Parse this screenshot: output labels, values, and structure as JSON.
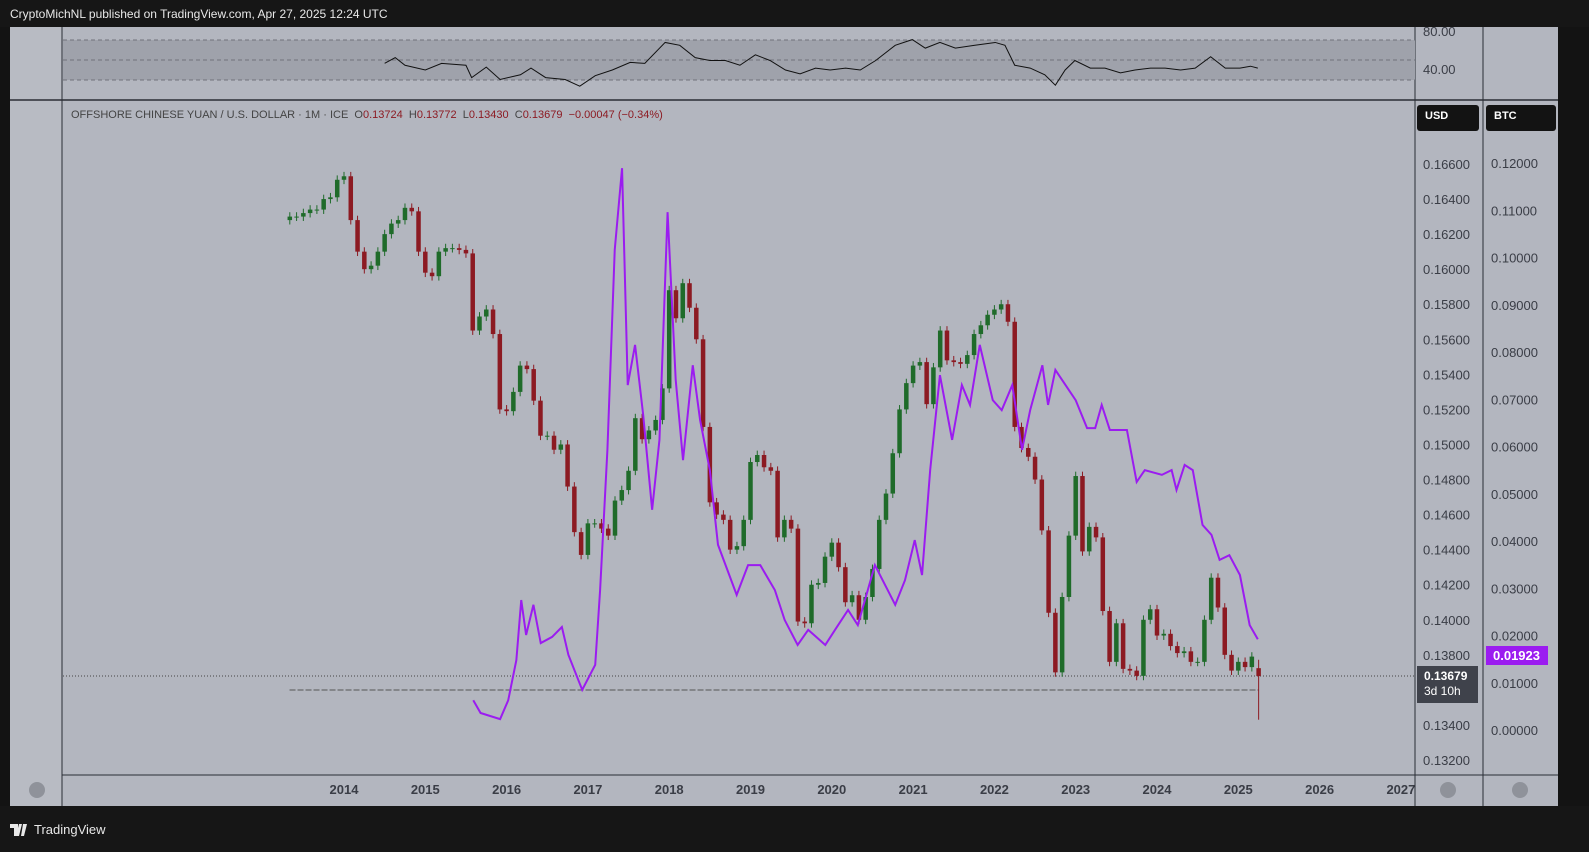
{
  "header": {
    "published": "CryptoMichNL published on TradingView.com, Apr 27, 2025 12:24 UTC"
  },
  "footer": {
    "logo_text": "TradingView"
  },
  "legend": {
    "symbol": "OFFSHORE CHINESE YUAN / U.S. DOLLAR · 1M · ICE",
    "o_label": "O",
    "o": "0.13724",
    "h_label": "H",
    "h": "0.13772",
    "l_label": "L",
    "l": "0.13430",
    "c_label": "C",
    "c": "0.13679",
    "change": "−0.00047 (−0.34%)"
  },
  "scales": {
    "left_label": "USD",
    "right_label": "BTC"
  },
  "price_tag": {
    "value": "0.13679",
    "countdown": "3d 10h"
  },
  "btc_tag": {
    "value": "0.01923"
  },
  "colors": {
    "up": "#1f6b2a",
    "down": "#8c1a22",
    "btc_line": "#9b1cf0",
    "background": "#b3b6bf"
  },
  "chart_data": [
    {
      "type": "candlestick",
      "title": "OFFSHORE CHINESE YUAN / U.S. DOLLAR · 1M · ICE",
      "start": "2013-05",
      "interval": "1M",
      "closes": [
        0.163,
        0.163,
        0.1632,
        0.1634,
        0.1634,
        0.164,
        0.1641,
        0.1651,
        0.1653,
        0.1628,
        0.161,
        0.16,
        0.1602,
        0.161,
        0.162,
        0.1626,
        0.1628,
        0.1635,
        0.1633,
        0.161,
        0.1598,
        0.1596,
        0.161,
        0.1612,
        0.1612,
        0.1611,
        0.1609,
        0.1565,
        0.1573,
        0.1577,
        0.1563,
        0.152,
        0.1519,
        0.153,
        0.1545,
        0.1543,
        0.1525,
        0.1505,
        0.1505,
        0.1497,
        0.15,
        0.1476,
        0.145,
        0.1437,
        0.1455,
        0.1455,
        0.1452,
        0.1448,
        0.1468,
        0.1474,
        0.1485,
        0.1515,
        0.1503,
        0.1508,
        0.1514,
        0.1532,
        0.1588,
        0.1572,
        0.1592,
        0.1578,
        0.156,
        0.151,
        0.1467,
        0.146,
        0.1457,
        0.144,
        0.1442,
        0.1457,
        0.149,
        0.1494,
        0.1487,
        0.1485,
        0.1447,
        0.1457,
        0.1452,
        0.1399,
        0.1398,
        0.142,
        0.1421,
        0.1436,
        0.1444,
        0.143,
        0.141,
        0.1414,
        0.14,
        0.1413,
        0.1429,
        0.1457,
        0.1472,
        0.1495,
        0.152,
        0.1535,
        0.1545,
        0.1547,
        0.1523,
        0.1544,
        0.1565,
        0.1548,
        0.1547,
        0.1546,
        0.1551,
        0.1563,
        0.1568,
        0.1574,
        0.1577,
        0.158,
        0.157,
        0.151,
        0.1498,
        0.1493,
        0.148,
        0.1451,
        0.1404,
        0.137,
        0.1413,
        0.1448,
        0.1482,
        0.1439,
        0.1453,
        0.1447,
        0.1405,
        0.1376,
        0.1398,
        0.1372,
        0.1371,
        0.1368,
        0.14,
        0.1406,
        0.1391,
        0.1392,
        0.1385,
        0.1381,
        0.1382,
        0.1376,
        0.1376,
        0.14,
        0.1424,
        0.1407,
        0.138,
        0.1371,
        0.1376,
        0.1373,
        0.1379,
        0.1368
      ],
      "last": {
        "open": 0.13724,
        "high": 0.13772,
        "low": 0.1343,
        "close": 0.13679
      },
      "y_ticks": [
        "0.16600",
        "0.16400",
        "0.16200",
        "0.16000",
        "0.15800",
        "0.15600",
        "0.15400",
        "0.15200",
        "0.15000",
        "0.14800",
        "0.14600",
        "0.14400",
        "0.14200",
        "0.14000",
        "0.13800",
        "0.13400",
        "0.13200"
      ],
      "ylim": [
        0.132,
        0.166
      ],
      "x_ticks": [
        "2014",
        "2015",
        "2016",
        "2017",
        "2018",
        "2019",
        "2020",
        "2021",
        "2022",
        "2023",
        "2024",
        "2025",
        "2026",
        "2027"
      ]
    },
    {
      "type": "line",
      "axis": "right",
      "color": "#9b1cf0",
      "y_ticks": [
        "0.12000",
        "0.11000",
        "0.10000",
        "0.09000",
        "0.08000",
        "0.07000",
        "0.06000",
        "0.05000",
        "0.04000",
        "0.03000",
        "0.02000",
        "0.01000",
        "0.00000"
      ],
      "ylim": [
        0,
        0.12
      ],
      "points": [
        [
          2015.59,
          0.0063
        ],
        [
          2015.68,
          0.0036
        ],
        [
          2015.92,
          0.0023
        ],
        [
          2016.02,
          0.0063
        ],
        [
          2016.12,
          0.0148
        ],
        [
          2016.18,
          0.0275
        ],
        [
          2016.24,
          0.0201
        ],
        [
          2016.33,
          0.0265
        ],
        [
          2016.42,
          0.0184
        ],
        [
          2016.56,
          0.0197
        ],
        [
          2016.68,
          0.0218
        ],
        [
          2016.76,
          0.0159
        ],
        [
          2016.93,
          0.0085
        ],
        [
          2017.09,
          0.0138
        ],
        [
          2017.15,
          0.0296
        ],
        [
          2017.24,
          0.0593
        ],
        [
          2017.33,
          0.1016
        ],
        [
          2017.42,
          0.1189
        ],
        [
          2017.49,
          0.073
        ],
        [
          2017.58,
          0.0815
        ],
        [
          2017.68,
          0.0667
        ],
        [
          2017.79,
          0.0466
        ],
        [
          2017.88,
          0.0614
        ],
        [
          2017.98,
          0.1096
        ],
        [
          2018.08,
          0.0741
        ],
        [
          2018.17,
          0.0571
        ],
        [
          2018.29,
          0.0772
        ],
        [
          2018.38,
          0.0656
        ],
        [
          2018.5,
          0.055
        ],
        [
          2018.6,
          0.0392
        ],
        [
          2018.83,
          0.0286
        ],
        [
          2018.97,
          0.0349
        ],
        [
          2019.12,
          0.0349
        ],
        [
          2019.3,
          0.0296
        ],
        [
          2019.42,
          0.0233
        ],
        [
          2019.58,
          0.018
        ],
        [
          2019.71,
          0.0212
        ],
        [
          2019.92,
          0.018
        ],
        [
          2020.04,
          0.0212
        ],
        [
          2020.2,
          0.0254
        ],
        [
          2020.32,
          0.0222
        ],
        [
          2020.53,
          0.0349
        ],
        [
          2020.78,
          0.0265
        ],
        [
          2020.9,
          0.0317
        ],
        [
          2021.02,
          0.0402
        ],
        [
          2021.11,
          0.0328
        ],
        [
          2021.21,
          0.055
        ],
        [
          2021.33,
          0.0751
        ],
        [
          2021.48,
          0.0614
        ],
        [
          2021.6,
          0.073
        ],
        [
          2021.7,
          0.0688
        ],
        [
          2021.82,
          0.0815
        ],
        [
          2021.98,
          0.0698
        ],
        [
          2022.09,
          0.0677
        ],
        [
          2022.22,
          0.073
        ],
        [
          2022.34,
          0.0593
        ],
        [
          2022.44,
          0.0677
        ],
        [
          2022.59,
          0.0772
        ],
        [
          2022.66,
          0.0688
        ],
        [
          2022.75,
          0.0762
        ],
        [
          2023.0,
          0.0698
        ],
        [
          2023.14,
          0.0639
        ],
        [
          2023.24,
          0.0639
        ],
        [
          2023.32,
          0.0688
        ],
        [
          2023.42,
          0.0635
        ],
        [
          2023.63,
          0.0635
        ],
        [
          2023.75,
          0.0525
        ],
        [
          2023.85,
          0.055
        ],
        [
          2024.06,
          0.054
        ],
        [
          2024.18,
          0.055
        ],
        [
          2024.24,
          0.0508
        ],
        [
          2024.34,
          0.0561
        ],
        [
          2024.44,
          0.055
        ],
        [
          2024.56,
          0.0434
        ],
        [
          2024.67,
          0.0413
        ],
        [
          2024.77,
          0.036
        ],
        [
          2024.89,
          0.037
        ],
        [
          2025.02,
          0.0328
        ],
        [
          2025.14,
          0.0222
        ],
        [
          2025.24,
          0.0192
        ]
      ]
    },
    {
      "type": "line",
      "pane": "rsi",
      "y_ticks": [
        "80.00",
        "40.00"
      ],
      "bands": [
        40,
        60,
        80
      ],
      "points": [
        [
          2014.5,
          47
        ],
        [
          2014.63,
          53
        ],
        [
          2014.75,
          45
        ],
        [
          2015.0,
          40
        ],
        [
          2015.2,
          47
        ],
        [
          2015.5,
          45
        ],
        [
          2015.57,
          32
        ],
        [
          2015.75,
          43
        ],
        [
          2015.92,
          30
        ],
        [
          2016.17,
          35
        ],
        [
          2016.3,
          42
        ],
        [
          2016.48,
          32
        ],
        [
          2016.72,
          30
        ],
        [
          2016.9,
          23
        ],
        [
          2017.09,
          34
        ],
        [
          2017.3,
          40
        ],
        [
          2017.52,
          48
        ],
        [
          2017.7,
          47
        ],
        [
          2017.95,
          69
        ],
        [
          2018.13,
          66
        ],
        [
          2018.32,
          53
        ],
        [
          2018.5,
          50
        ],
        [
          2018.69,
          50
        ],
        [
          2018.87,
          45
        ],
        [
          2019.06,
          56
        ],
        [
          2019.24,
          50
        ],
        [
          2019.43,
          40
        ],
        [
          2019.61,
          36
        ],
        [
          2019.8,
          42
        ],
        [
          2019.98,
          40
        ],
        [
          2020.17,
          42
        ],
        [
          2020.35,
          40
        ],
        [
          2020.54,
          50
        ],
        [
          2020.78,
          66
        ],
        [
          2020.99,
          72
        ],
        [
          2021.15,
          63
        ],
        [
          2021.33,
          69
        ],
        [
          2021.52,
          63
        ],
        [
          2021.76,
          66
        ],
        [
          2022.01,
          69
        ],
        [
          2022.13,
          66
        ],
        [
          2022.25,
          45
        ],
        [
          2022.44,
          42
        ],
        [
          2022.62,
          35
        ],
        [
          2022.75,
          24
        ],
        [
          2022.87,
          40
        ],
        [
          2022.99,
          50
        ],
        [
          2023.18,
          42
        ],
        [
          2023.36,
          42
        ],
        [
          2023.55,
          37
        ],
        [
          2023.73,
          40
        ],
        [
          2023.92,
          42
        ],
        [
          2024.1,
          42
        ],
        [
          2024.29,
          40
        ],
        [
          2024.47,
          42
        ],
        [
          2024.66,
          54
        ],
        [
          2024.84,
          42
        ],
        [
          2025.02,
          42
        ],
        [
          2025.15,
          44
        ],
        [
          2025.24,
          42
        ]
      ]
    }
  ]
}
